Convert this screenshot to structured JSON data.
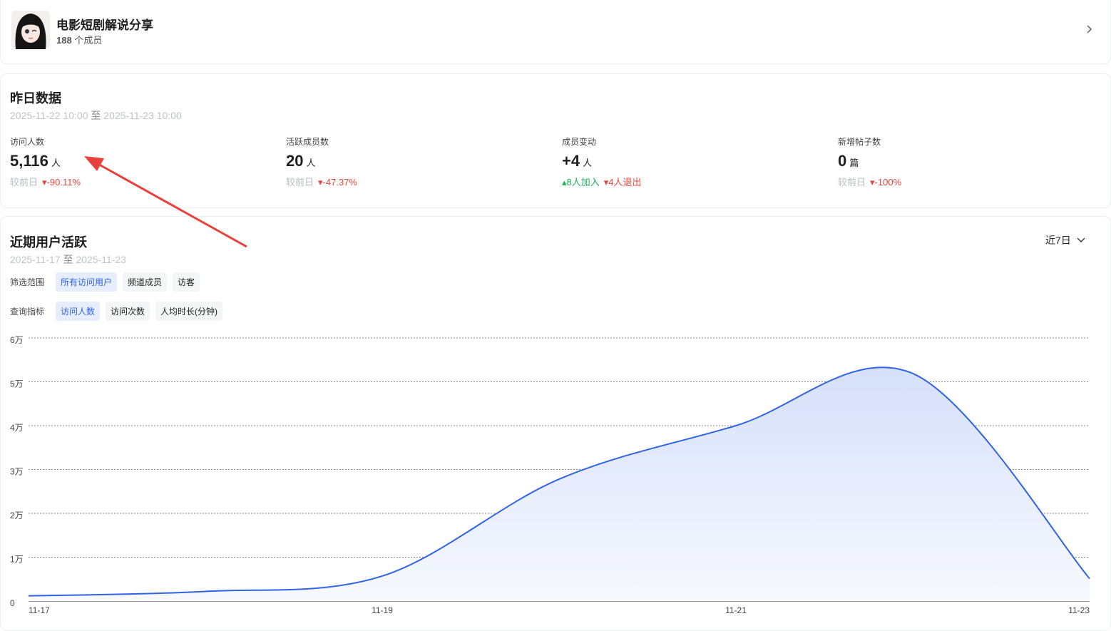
{
  "header": {
    "title": "电影短剧解说分享",
    "member_count": "188",
    "member_label": "个成员"
  },
  "yesterday": {
    "title": "昨日数据",
    "range_start": "2025-11-22 10:00",
    "range_sep": "至",
    "range_end": "2025-11-23 10:00",
    "stats": [
      {
        "label": "访问人数",
        "value": "5,116",
        "unit": "人",
        "compare": "较前日",
        "change": "-90.11%"
      },
      {
        "label": "活跃成员数",
        "value": "20",
        "unit": "人",
        "compare": "较前日",
        "change": "-47.37%"
      },
      {
        "label": "成员变动",
        "value": "+4",
        "unit": "人",
        "joined": "8人加入",
        "left": "4人退出"
      },
      {
        "label": "新增帖子数",
        "value": "0",
        "unit": "篇",
        "compare": "较前日",
        "change": "-100%"
      }
    ]
  },
  "recent": {
    "title": "近期用户活跃",
    "range_start": "2025-11-17",
    "range_sep": "至",
    "range_end": "2025-11-23",
    "period": "近7日",
    "filter": {
      "label": "筛选范围",
      "options": [
        "所有访问用户",
        "频道成员",
        "访客"
      ],
      "selected": 0
    },
    "metric": {
      "label": "查询指标",
      "options": [
        "访问人数",
        "访问次数",
        "人均时长(分钟)"
      ],
      "selected": 0
    }
  },
  "chart_data": {
    "type": "area",
    "categories": [
      "11-17",
      null,
      "11-19",
      null,
      "11-21",
      null,
      "11-23"
    ],
    "values": [
      1200,
      2200,
      5700,
      27800,
      40000,
      51900,
      5116
    ],
    "color": "#2f63e6",
    "ylim": [
      0,
      60000
    ],
    "yticks": [
      0,
      {
        "value": 10000,
        "label": "1万"
      },
      {
        "value": 20000,
        "label": "2万"
      },
      {
        "value": 30000,
        "label": "3万"
      },
      {
        "value": 40000,
        "label": "4万"
      },
      {
        "value": 50000,
        "label": "5万"
      },
      {
        "value": 60000,
        "label": "6万"
      }
    ],
    "grid": true
  }
}
